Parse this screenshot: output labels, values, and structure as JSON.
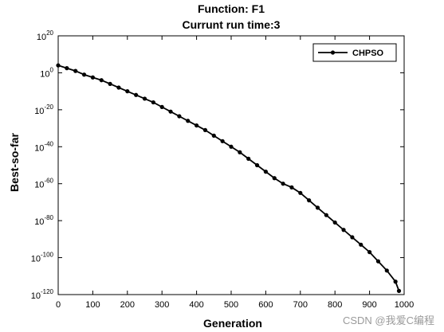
{
  "chart_data": {
    "type": "line",
    "title": "Function: F1",
    "subtitle": "Currunt run time:3",
    "xlabel": "Generation",
    "ylabel": "Best-so-far",
    "xlim": [
      0,
      1000
    ],
    "ylim_log10": [
      -120,
      20
    ],
    "yscale": "log",
    "x_ticks": [
      "0",
      "100",
      "200",
      "300",
      "400",
      "500",
      "600",
      "700",
      "800",
      "900",
      "1000"
    ],
    "y_tick_base": "10",
    "y_tick_exponents": [
      "20",
      "0",
      "-20",
      "-40",
      "-60",
      "-80",
      "-100",
      "-120"
    ],
    "legend_position": "top-right",
    "grid": false,
    "series": [
      {
        "name": "CHPSO",
        "color": "#000000",
        "marker": "circle",
        "x": [
          0,
          25,
          50,
          75,
          100,
          125,
          150,
          175,
          200,
          225,
          250,
          275,
          300,
          325,
          350,
          375,
          400,
          425,
          450,
          475,
          500,
          525,
          550,
          575,
          600,
          625,
          650,
          675,
          700,
          725,
          750,
          775,
          800,
          825,
          850,
          875,
          900,
          925,
          950,
          975,
          985
        ],
        "y_log10": [
          4,
          2.5,
          1,
          -1,
          -2.5,
          -4,
          -6,
          -8,
          -10,
          -12,
          -14,
          -16,
          -18.5,
          -21,
          -23.5,
          -26,
          -28.5,
          -31,
          -34,
          -37,
          -40,
          -43,
          -46.5,
          -50,
          -53.5,
          -57,
          -60,
          -62,
          -65,
          -69,
          -73,
          -77,
          -81,
          -85,
          -89,
          -93,
          -97,
          -102,
          -107,
          -113,
          -118
        ]
      }
    ]
  },
  "watermark": "CSDN @我爱C编程"
}
